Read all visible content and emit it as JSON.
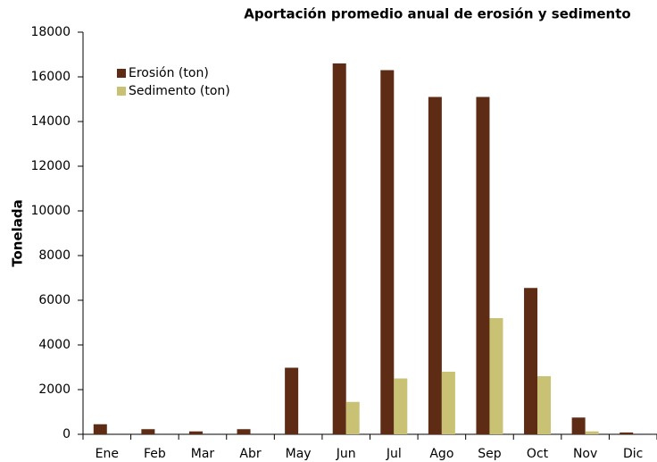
{
  "chart_data": {
    "type": "bar",
    "title": "Aportación promedio anual de erosión y sedimento",
    "y_label": "Tonelada",
    "categories": [
      "Ene",
      "Feb",
      "Mar",
      "Abr",
      "May",
      "Jun",
      "Jul",
      "Ago",
      "Sep",
      "Oct",
      "Nov",
      "Dic"
    ],
    "series": [
      {
        "name": "Erosión (ton)",
        "color": "#5e2b14",
        "values": [
          450,
          230,
          130,
          230,
          2980,
          16600,
          16300,
          15100,
          15100,
          6550,
          750,
          80
        ]
      },
      {
        "name": "Sedimento (ton)",
        "color": "#c9c174",
        "values": [
          0,
          0,
          0,
          0,
          0,
          1450,
          2500,
          2800,
          5200,
          2600,
          130,
          0
        ]
      }
    ],
    "ylim": [
      0,
      18000
    ],
    "yticks": [
      0,
      2000,
      4000,
      6000,
      8000,
      10000,
      12000,
      14000,
      16000,
      18000
    ],
    "grid": false,
    "legend": "upper-left"
  }
}
